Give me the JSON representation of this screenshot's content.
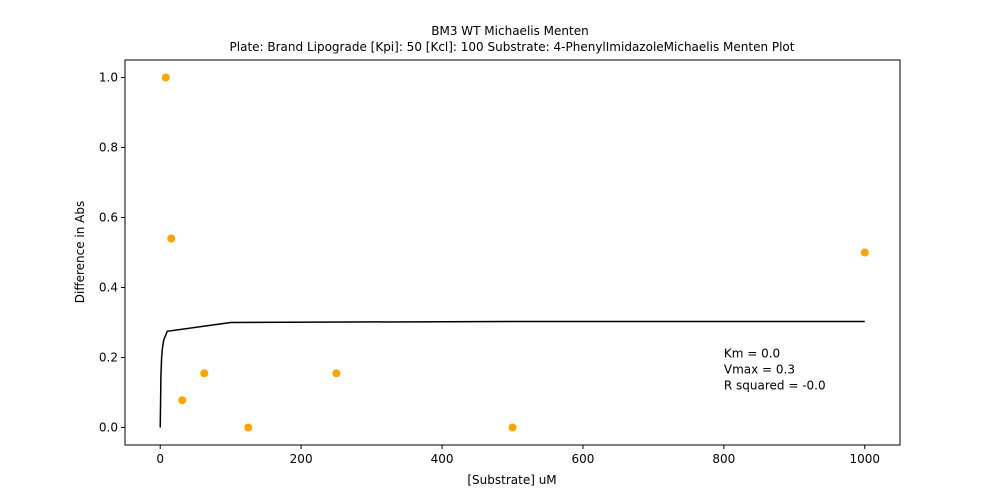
{
  "chart_data": {
    "type": "scatter",
    "title": "BM3 WT Michaelis Menten",
    "subtitle": "Plate: Brand Lipograde  [Kpi]: 50  [Kcl]: 100  Substrate: 4-PhenylImidazoleMichaelis Menten Plot",
    "xlabel": "[Substrate] uM",
    "ylabel": "Difference in Abs",
    "xlim": [
      -50,
      1050
    ],
    "ylim": [
      -0.05,
      1.05
    ],
    "xticks": [
      0,
      200,
      400,
      600,
      800,
      1000
    ],
    "xtick_labels": [
      "0",
      "200",
      "400",
      "600",
      "800",
      "1000"
    ],
    "yticks": [
      0.0,
      0.2,
      0.4,
      0.6,
      0.8,
      1.0
    ],
    "ytick_labels": [
      "0.0",
      "0.2",
      "0.4",
      "0.6",
      "0.8",
      "1.0"
    ],
    "grid": false,
    "points": {
      "color": "#ffa500",
      "x": [
        7.8,
        15.6,
        31.25,
        62.5,
        125,
        250,
        500,
        1000
      ],
      "y": [
        1.0,
        0.54,
        0.078,
        0.155,
        0.0,
        0.155,
        0.0,
        0.5
      ]
    },
    "fit_line": {
      "color": "#000000",
      "x": [
        0,
        1,
        2,
        3,
        5,
        10,
        100,
        500,
        1000
      ],
      "y": [
        0.0,
        0.15,
        0.2,
        0.225,
        0.25,
        0.275,
        0.3,
        0.303,
        0.303
      ]
    },
    "annotations": [
      "Km = 0.0",
      "Vmax = 0.3",
      "R squared = -0.0"
    ],
    "annotation_x": 800,
    "annotation_y": 0.2
  }
}
